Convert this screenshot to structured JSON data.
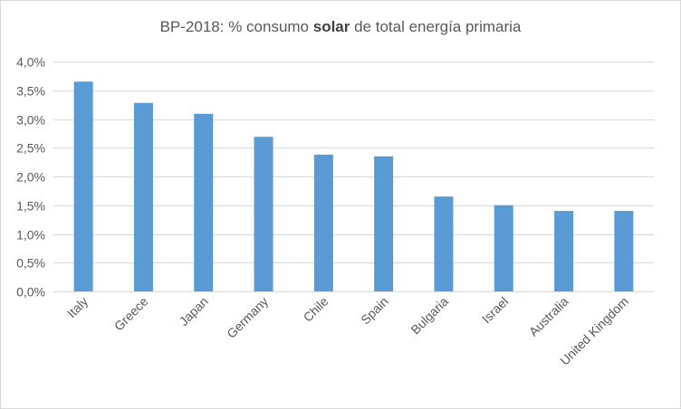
{
  "chart_data": {
    "type": "bar",
    "title": {
      "before": "BP-2018: % consumo ",
      "bold": "solar",
      "after": " de total energía primaria"
    },
    "categories": [
      "Italy",
      "Greece",
      "Japan",
      "Germany",
      "Chile",
      "Spain",
      "Bulgaria",
      "Israel",
      "Australia",
      "United Kingdom"
    ],
    "values": [
      3.65,
      3.28,
      3.09,
      2.69,
      2.38,
      2.35,
      1.65,
      1.5,
      1.4,
      1.4
    ],
    "ylim": [
      0,
      4.0
    ],
    "yticks": [
      "0,0%",
      "0,5%",
      "1,0%",
      "1,5%",
      "2,0%",
      "2,5%",
      "3,0%",
      "3,5%",
      "4,0%"
    ],
    "grid": true,
    "bar_color": "#5b9bd5",
    "grid_color": "#d9d9d9"
  }
}
